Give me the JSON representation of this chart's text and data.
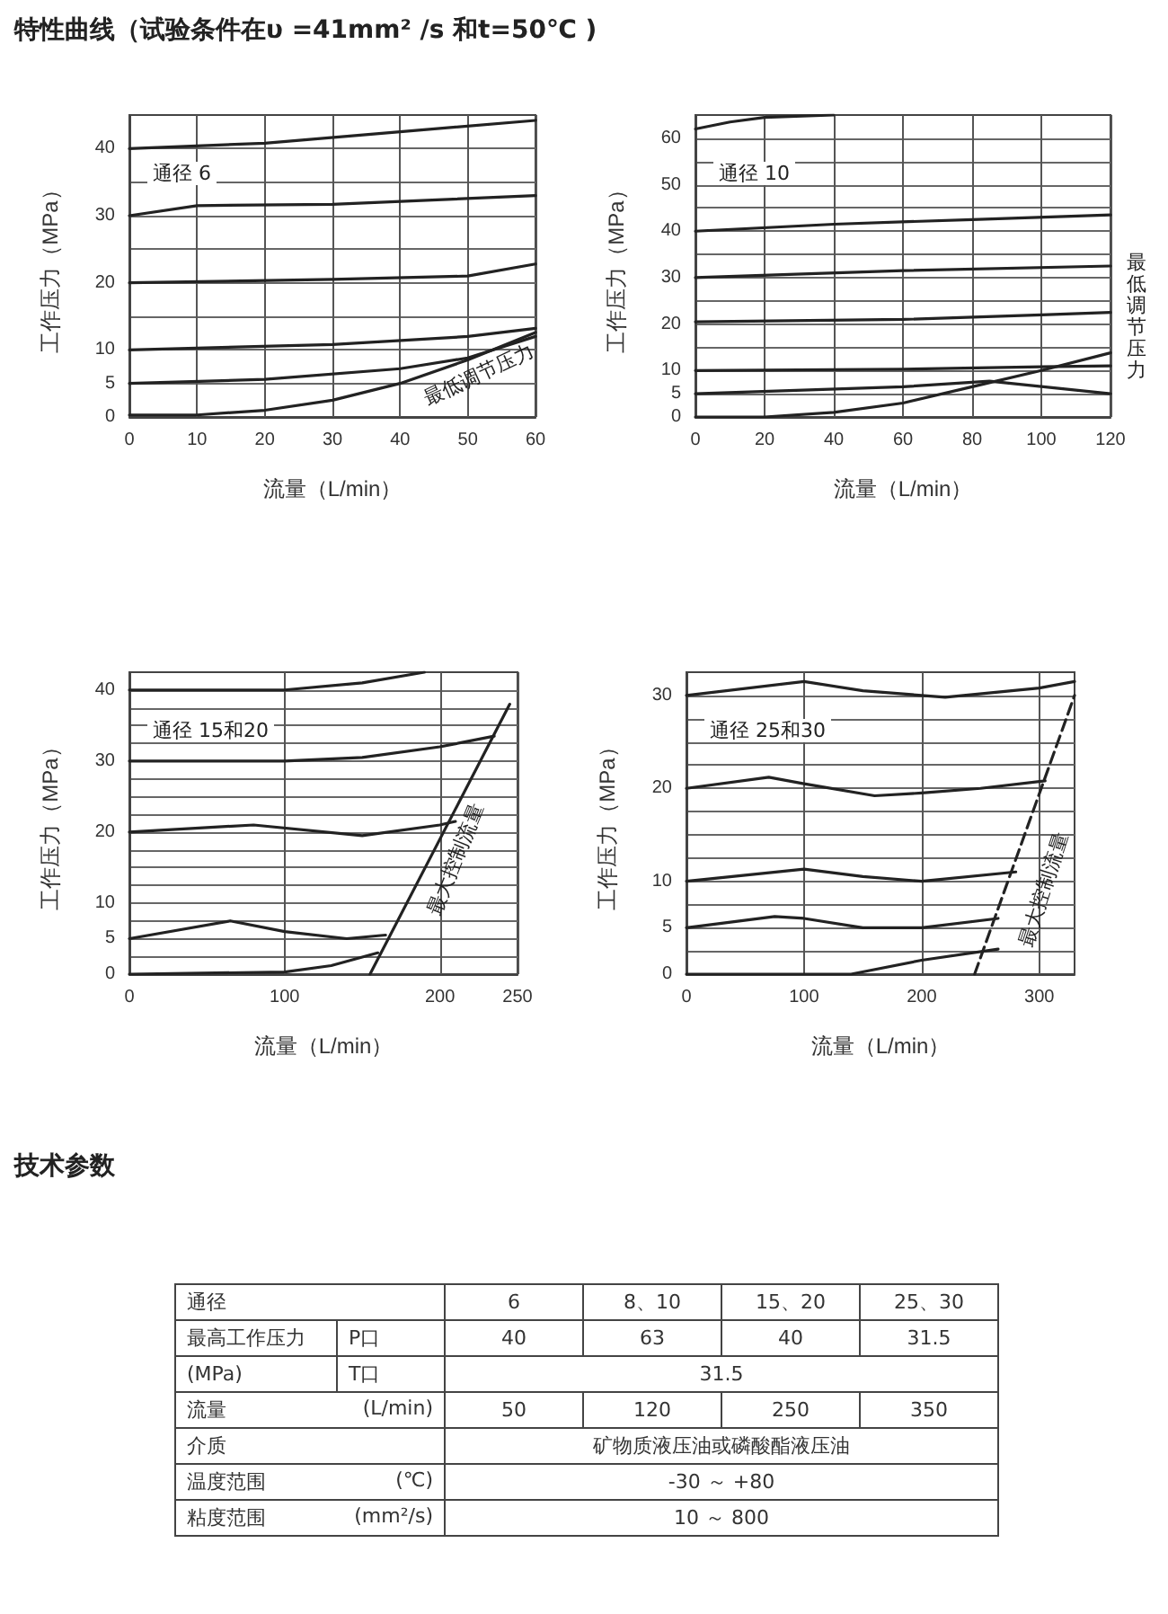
{
  "chart_data": [
    {
      "type": "line",
      "title": "特性曲线（试验条件在υ =41mm² /s 和t=50℃ )",
      "xlabel": "流量（L/min）",
      "ylabel": "工作压力（MPa）",
      "xlim": [
        0,
        60
      ],
      "xticks": [
        0,
        10,
        20,
        30,
        40,
        50,
        60
      ],
      "ylim": [
        0,
        45
      ],
      "yticks": [
        0,
        5,
        10,
        {
          "value": 15,
          "label": null
        },
        20,
        {
          "value": 25,
          "label": null
        },
        30,
        {
          "value": 35,
          "label": null
        },
        40
      ],
      "grid": true,
      "annotations": [
        "通径 6",
        "最低调节压力"
      ],
      "series": [
        {
          "color": "#222222",
          "x": [
            0,
            20,
            40,
            60
          ],
          "values": [
            40,
            40.8,
            42.5,
            44.2
          ]
        },
        {
          "color": "#222222",
          "x": [
            0,
            10,
            30,
            60
          ],
          "values": [
            30,
            31.5,
            31.7,
            33
          ]
        },
        {
          "color": "#222222",
          "x": [
            0,
            30,
            50,
            60
          ],
          "values": [
            20,
            20.5,
            21,
            22.8
          ]
        },
        {
          "color": "#222222",
          "x": [
            0,
            30,
            50,
            60
          ],
          "values": [
            10,
            10.8,
            12,
            13.2
          ]
        },
        {
          "color": "#222222",
          "x": [
            0,
            20,
            40,
            50,
            60
          ],
          "values": [
            5,
            5.6,
            7.2,
            8.8,
            12
          ]
        },
        {
          "color": "#222222",
          "x": [
            0,
            10,
            20,
            30,
            40,
            50,
            60
          ],
          "values": [
            0.3,
            0.3,
            1,
            2.5,
            5,
            8.5,
            12.6
          ]
        }
      ]
    },
    {
      "type": "line",
      "xlabel": "流量（L/min）",
      "ylabel": "工作压力（MPa）",
      "xlim": [
        0,
        120
      ],
      "xticks": [
        0,
        20,
        40,
        60,
        80,
        100,
        120
      ],
      "ylim": [
        0,
        65
      ],
      "yticks": [
        0,
        5,
        10,
        {
          "value": 15,
          "label": null
        },
        20,
        {
          "value": 25,
          "label": null
        },
        30,
        {
          "value": 35,
          "label": null
        },
        40,
        {
          "value": 45,
          "label": null
        },
        50,
        {
          "value": 55,
          "label": null
        },
        60
      ],
      "grid": true,
      "annotations": [
        "通径 10",
        "最低调节压力"
      ],
      "series": [
        {
          "color": "#222222",
          "x": [
            0,
            10,
            20,
            40
          ],
          "values": [
            62,
            63.5,
            64.5,
            65
          ]
        },
        {
          "color": "#222222",
          "x": [
            0,
            40,
            80,
            120
          ],
          "values": [
            40,
            41.5,
            42.5,
            43.5
          ]
        },
        {
          "color": "#222222",
          "x": [
            0,
            60,
            120
          ],
          "values": [
            30,
            31.5,
            32.5
          ]
        },
        {
          "color": "#222222",
          "x": [
            0,
            60,
            100,
            120
          ],
          "values": [
            20.5,
            21,
            22,
            22.5
          ]
        },
        {
          "color": "#222222",
          "x": [
            0,
            60,
            100,
            120
          ],
          "values": [
            10,
            10.3,
            10.8,
            11
          ]
        },
        {
          "color": "#222222",
          "x": [
            0,
            60,
            85,
            120
          ],
          "values": [
            5,
            6.5,
            7.7,
            5
          ]
        },
        {
          "color": "#222222",
          "x": [
            0,
            20,
            40,
            60,
            80,
            100,
            120
          ],
          "values": [
            0,
            0,
            1,
            3,
            6.5,
            10,
            13.8
          ]
        }
      ]
    },
    {
      "type": "line",
      "xlabel": "流量（L/min）",
      "ylabel": "工作压力（MPa）",
      "xlim": [
        0,
        250
      ],
      "xticks": [
        0,
        100,
        200,
        250
      ],
      "ylim": [
        0,
        42.5
      ],
      "yticks": [
        0,
        {
          "value": 2.5,
          "label": null
        },
        5,
        {
          "value": 7.5,
          "label": null
        },
        10,
        {
          "value": 12.5,
          "label": null
        },
        {
          "value": 15,
          "label": null
        },
        {
          "value": 17.5,
          "label": null
        },
        20,
        {
          "value": 22.5,
          "label": null
        },
        {
          "value": 25,
          "label": null
        },
        {
          "value": 27.5,
          "label": null
        },
        30,
        {
          "value": 32.5,
          "label": null
        },
        {
          "value": 35,
          "label": null
        },
        {
          "value": 37.5,
          "label": null
        },
        40
      ],
      "grid": true,
      "annotations": [
        "通径 15和20",
        "最大控制流量"
      ],
      "series": [
        {
          "color": "#222222",
          "x": [
            0,
            100,
            150,
            190
          ],
          "values": [
            40,
            40,
            41,
            42.5
          ]
        },
        {
          "color": "#222222",
          "x": [
            0,
            100,
            150,
            200,
            235
          ],
          "values": [
            30,
            30,
            30.5,
            32,
            33.5
          ]
        },
        {
          "color": "#222222",
          "x": [
            0,
            80,
            150,
            200,
            210
          ],
          "values": [
            20,
            21,
            19.5,
            21,
            21.5
          ]
        },
        {
          "color": "#222222",
          "x": [
            0,
            65,
            100,
            140,
            165
          ],
          "values": [
            5,
            7.5,
            6,
            5,
            5.5
          ]
        },
        {
          "color": "#222222",
          "x": [
            0,
            100,
            130,
            160
          ],
          "values": [
            0,
            0.3,
            1.2,
            3
          ]
        },
        {
          "color": "#222222",
          "x": [
            155,
            245
          ],
          "values": [
            0,
            38
          ]
        }
      ]
    },
    {
      "type": "line",
      "xlabel": "流量（L/min）",
      "ylabel": "工作压力（MPa）",
      "xlim": [
        0,
        330
      ],
      "xticks": [
        0,
        100,
        200,
        300
      ],
      "ylim": [
        0,
        32.5
      ],
      "yticks": [
        0,
        {
          "value": 2.5,
          "label": null
        },
        5,
        {
          "value": 7.5,
          "label": null
        },
        10,
        {
          "value": 12.5,
          "label": null
        },
        {
          "value": 15,
          "label": null
        },
        {
          "value": 17.5,
          "label": null
        },
        20,
        {
          "value": 22.5,
          "label": null
        },
        {
          "value": 25,
          "label": null
        },
        {
          "value": 27.5,
          "label": null
        },
        30
      ],
      "grid": true,
      "annotations": [
        "通径 25和30",
        "最大控制流量"
      ],
      "series": [
        {
          "color": "#222222",
          "x": [
            0,
            100,
            150,
            220,
            300,
            330
          ],
          "values": [
            30,
            31.5,
            30.5,
            29.8,
            30.8,
            31.5
          ]
        },
        {
          "color": "#222222",
          "x": [
            0,
            70,
            100,
            160,
            200,
            250,
            305
          ],
          "values": [
            20,
            21.2,
            20.5,
            19.2,
            19.5,
            20,
            20.8
          ]
        },
        {
          "color": "#222222",
          "x": [
            0,
            100,
            150,
            200,
            280
          ],
          "values": [
            10,
            11.3,
            10.5,
            10,
            11
          ]
        },
        {
          "color": "#222222",
          "x": [
            0,
            75,
            100,
            150,
            200,
            265
          ],
          "values": [
            5,
            6.2,
            6,
            5,
            5,
            6
          ]
        },
        {
          "color": "#222222",
          "x": [
            0,
            140,
            200,
            265
          ],
          "values": [
            0,
            0,
            1.5,
            2.7
          ]
        },
        {
          "color": "#222222",
          "line_style": "dashed",
          "x": [
            245,
            330
          ],
          "values": [
            0,
            30
          ]
        }
      ]
    },
    {
      "type": "other",
      "title": "技术参数",
      "annotations": [
        "通径",
        "6",
        "8、10",
        "15、20",
        "25、30",
        "最高工作压力",
        "P口",
        "40",
        "63",
        "40",
        "31.5",
        "(MPa)",
        "T口",
        "31.5",
        "流量",
        "(L/min)",
        "50",
        "120",
        "250",
        "350",
        "介质",
        "矿物质液压油或磷酸酯液压油",
        "温度范围",
        "(℃)",
        "-30 ～ +80",
        "粘度范围",
        "(mm²/s)",
        "10 ～ 800"
      ]
    }
  ]
}
